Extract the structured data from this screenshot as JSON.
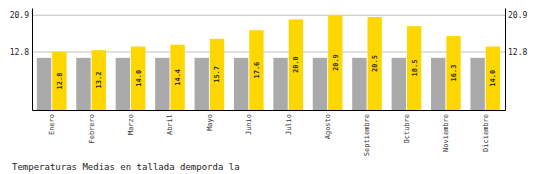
{
  "chart_data": {
    "type": "bar",
    "title": "Temperaturas Medias en tallada demporda la",
    "categories": [
      "Enero",
      "Febrero",
      "Marzo",
      "Abril",
      "Mayo",
      "Junio",
      "Julio",
      "Agosto",
      "Septiembre",
      "Octubre",
      "Noviembre",
      "Diciembre"
    ],
    "series": [
      {
        "color": "#AAAAAA",
        "values": [
          11.5,
          11.5,
          11.5,
          11.5,
          11.5,
          11.5,
          11.5,
          11.5,
          11.5,
          11.5,
          11.5,
          11.5
        ]
      },
      {
        "color": "#FFD700",
        "values": [
          12.8,
          13.2,
          14.0,
          14.4,
          15.7,
          17.6,
          20.0,
          20.9,
          20.5,
          18.5,
          16.3,
          14.0
        ],
        "value_labels": [
          "12.8",
          "13.2",
          "14.0",
          "14.4",
          "15.7",
          "17.6",
          "20.0",
          "20.9",
          "20.5",
          "18.5",
          "16.3",
          "14.0"
        ],
        "data_labels": true
      }
    ],
    "ylim": [
      0,
      22.5
    ],
    "yticks": [
      12.8,
      20.9
    ],
    "y2lim": [
      0,
      22.5
    ],
    "y2ticks": [
      12.8,
      20.9
    ],
    "grid": true
  }
}
